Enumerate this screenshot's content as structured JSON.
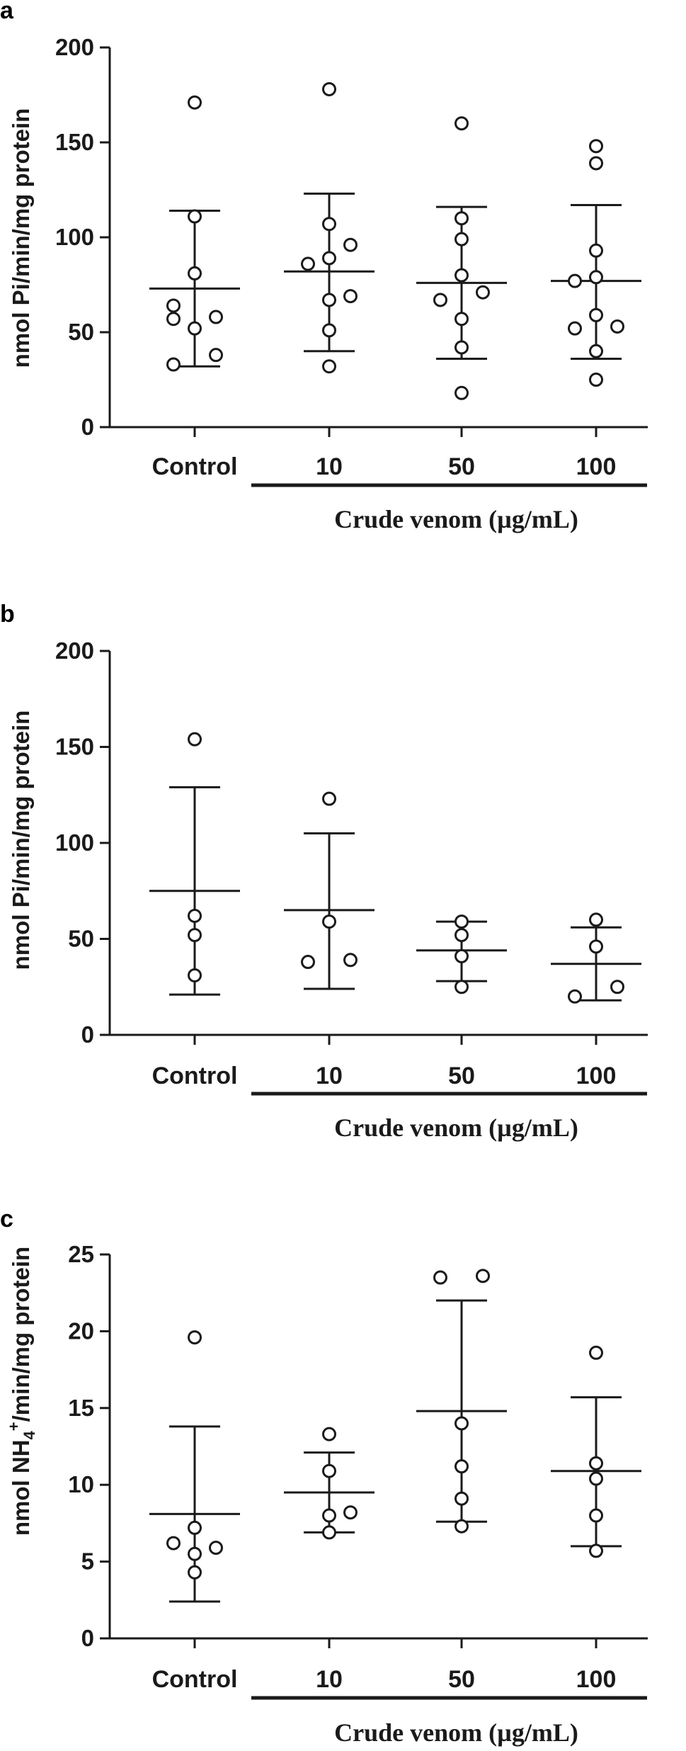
{
  "chart_data": [
    {
      "type": "scatter",
      "panel": "a",
      "ylabel": "nmol Pi/min/mg protein",
      "ylim": [
        0,
        200
      ],
      "yticks": [
        0,
        50,
        100,
        150,
        200
      ],
      "categories": [
        "Control",
        "10",
        "50",
        "100"
      ],
      "group_label": "Crude venom (µg/mL)",
      "group_categories": [
        "10",
        "50",
        "100"
      ],
      "groups": [
        {
          "category": "Control",
          "mean": 73,
          "sd_low": 32,
          "sd_high": 114,
          "points": [
            [
              0,
              171
            ],
            [
              0,
              111
            ],
            [
              0,
              81
            ],
            [
              -0.25,
              64
            ],
            [
              -0.25,
              57
            ],
            [
              0,
              52
            ],
            [
              0.25,
              58
            ],
            [
              0.25,
              38
            ],
            [
              -0.25,
              33
            ]
          ]
        },
        {
          "category": "10",
          "mean": 82,
          "sd_low": 40,
          "sd_high": 123,
          "points": [
            [
              0,
              178
            ],
            [
              0,
              107
            ],
            [
              0.25,
              96
            ],
            [
              -0.25,
              86
            ],
            [
              0,
              89
            ],
            [
              0,
              67
            ],
            [
              0.25,
              69
            ],
            [
              0,
              51
            ],
            [
              0,
              32
            ]
          ]
        },
        {
          "category": "50",
          "mean": 76,
          "sd_low": 36,
          "sd_high": 116,
          "points": [
            [
              0,
              160
            ],
            [
              0,
              110
            ],
            [
              0,
              99
            ],
            [
              0,
              80
            ],
            [
              -0.25,
              67
            ],
            [
              0.25,
              71
            ],
            [
              0,
              57
            ],
            [
              0,
              42
            ],
            [
              0,
              18
            ]
          ]
        },
        {
          "category": "100",
          "mean": 77,
          "sd_low": 36,
          "sd_high": 117,
          "points": [
            [
              0,
              148
            ],
            [
              0,
              139
            ],
            [
              0,
              93
            ],
            [
              0,
              79
            ],
            [
              -0.25,
              77
            ],
            [
              -0.25,
              52
            ],
            [
              0,
              59
            ],
            [
              0.25,
              53
            ],
            [
              0,
              40
            ],
            [
              0,
              25
            ]
          ]
        }
      ]
    },
    {
      "type": "scatter",
      "panel": "b",
      "ylabel": "nmol Pi/min/mg protein",
      "ylim": [
        0,
        200
      ],
      "yticks": [
        0,
        50,
        100,
        150,
        200
      ],
      "categories": [
        "Control",
        "10",
        "50",
        "100"
      ],
      "group_label": "Crude venom (µg/mL)",
      "group_categories": [
        "10",
        "50",
        "100"
      ],
      "groups": [
        {
          "category": "Control",
          "mean": 75,
          "sd_low": 21,
          "sd_high": 129,
          "points": [
            [
              0,
              154
            ],
            [
              0,
              62
            ],
            [
              0,
              52
            ],
            [
              0,
              31
            ]
          ]
        },
        {
          "category": "10",
          "mean": 65,
          "sd_low": 24,
          "sd_high": 105,
          "points": [
            [
              0,
              123
            ],
            [
              0,
              59
            ],
            [
              -0.25,
              38
            ],
            [
              0.25,
              39
            ]
          ]
        },
        {
          "category": "50",
          "mean": 44,
          "sd_low": 28,
          "sd_high": 59,
          "points": [
            [
              0,
              59
            ],
            [
              0,
              52
            ],
            [
              0,
              41
            ],
            [
              0,
              25
            ]
          ]
        },
        {
          "category": "100",
          "mean": 37,
          "sd_low": 18,
          "sd_high": 56,
          "points": [
            [
              0,
              60
            ],
            [
              0,
              46
            ],
            [
              0.25,
              25
            ],
            [
              -0.25,
              20
            ]
          ]
        }
      ]
    },
    {
      "type": "scatter",
      "panel": "c",
      "ylabel_prefix": "nmol NH",
      "ylabel_sub": "4",
      "ylabel_sup": "+",
      "ylabel_suffix": "/min/mg protein",
      "ylim": [
        0,
        25
      ],
      "yticks": [
        0,
        5,
        10,
        15,
        20,
        25
      ],
      "categories": [
        "Control",
        "10",
        "50",
        "100"
      ],
      "group_label": "Crude venom (µg/mL)",
      "group_categories": [
        "10",
        "50",
        "100"
      ],
      "groups": [
        {
          "category": "Control",
          "mean": 8.1,
          "sd_low": 2.4,
          "sd_high": 13.8,
          "points": [
            [
              0,
              19.6
            ],
            [
              0,
              7.2
            ],
            [
              -0.25,
              6.2
            ],
            [
              0.25,
              5.9
            ],
            [
              0,
              5.5
            ],
            [
              0,
              4.3
            ]
          ]
        },
        {
          "category": "10",
          "mean": 9.5,
          "sd_low": 6.9,
          "sd_high": 12.1,
          "points": [
            [
              0,
              13.3
            ],
            [
              0,
              10.9
            ],
            [
              0,
              8.0
            ],
            [
              0.25,
              8.2
            ],
            [
              0,
              6.9
            ]
          ]
        },
        {
          "category": "50",
          "mean": 14.8,
          "sd_low": 7.6,
          "sd_high": 22.0,
          "points": [
            [
              -0.25,
              23.5
            ],
            [
              0.25,
              23.6
            ],
            [
              0,
              14.0
            ],
            [
              0,
              11.2
            ],
            [
              0,
              9.1
            ],
            [
              0,
              7.3
            ]
          ]
        },
        {
          "category": "100",
          "mean": 10.9,
          "sd_low": 6.0,
          "sd_high": 15.7,
          "points": [
            [
              0,
              18.6
            ],
            [
              0,
              11.4
            ],
            [
              0,
              10.4
            ],
            [
              0,
              8.0
            ],
            [
              0,
              5.7
            ]
          ]
        }
      ]
    }
  ]
}
